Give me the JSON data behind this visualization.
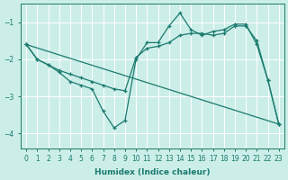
{
  "xlabel": "Humidex (Indice chaleur)",
  "ylabel": "",
  "bg_color": "#cceee8",
  "line_color": "#1a7a6e",
  "grid_color": "#ffffff",
  "xlim": [
    -0.5,
    23.5
  ],
  "ylim": [
    -4.4,
    -0.5
  ],
  "yticks": [
    -4,
    -3,
    -2,
    -1
  ],
  "line1_x": [
    0,
    1,
    2,
    3,
    4,
    5,
    6,
    7,
    8,
    9,
    10,
    11,
    12,
    13,
    14,
    15,
    16,
    17,
    18,
    19,
    20,
    21,
    22,
    23
  ],
  "line1_y": [
    -1.6,
    -2.0,
    -2.15,
    -2.35,
    -2.6,
    -2.7,
    -2.8,
    -3.4,
    -3.85,
    -3.65,
    -2.0,
    -1.55,
    -1.55,
    -1.1,
    -0.75,
    -1.2,
    -1.35,
    -1.25,
    -1.2,
    -1.05,
    -1.05,
    -1.6,
    -2.55,
    -3.75
  ],
  "line2_x": [
    0,
    1,
    2,
    3,
    4,
    5,
    6,
    7,
    8,
    9,
    10,
    11,
    12,
    13,
    14,
    15,
    16,
    17,
    18,
    19,
    20,
    21,
    22,
    23
  ],
  "line2_y": [
    -1.6,
    -2.0,
    -2.15,
    -2.3,
    -2.4,
    -2.5,
    -2.6,
    -2.7,
    -2.8,
    -2.85,
    -1.95,
    -1.7,
    -1.65,
    -1.55,
    -1.35,
    -1.3,
    -1.3,
    -1.35,
    -1.3,
    -1.1,
    -1.1,
    -1.5,
    -2.55,
    -3.75
  ],
  "line3_x": [
    0,
    23
  ],
  "line3_y": [
    -1.6,
    -3.75
  ]
}
